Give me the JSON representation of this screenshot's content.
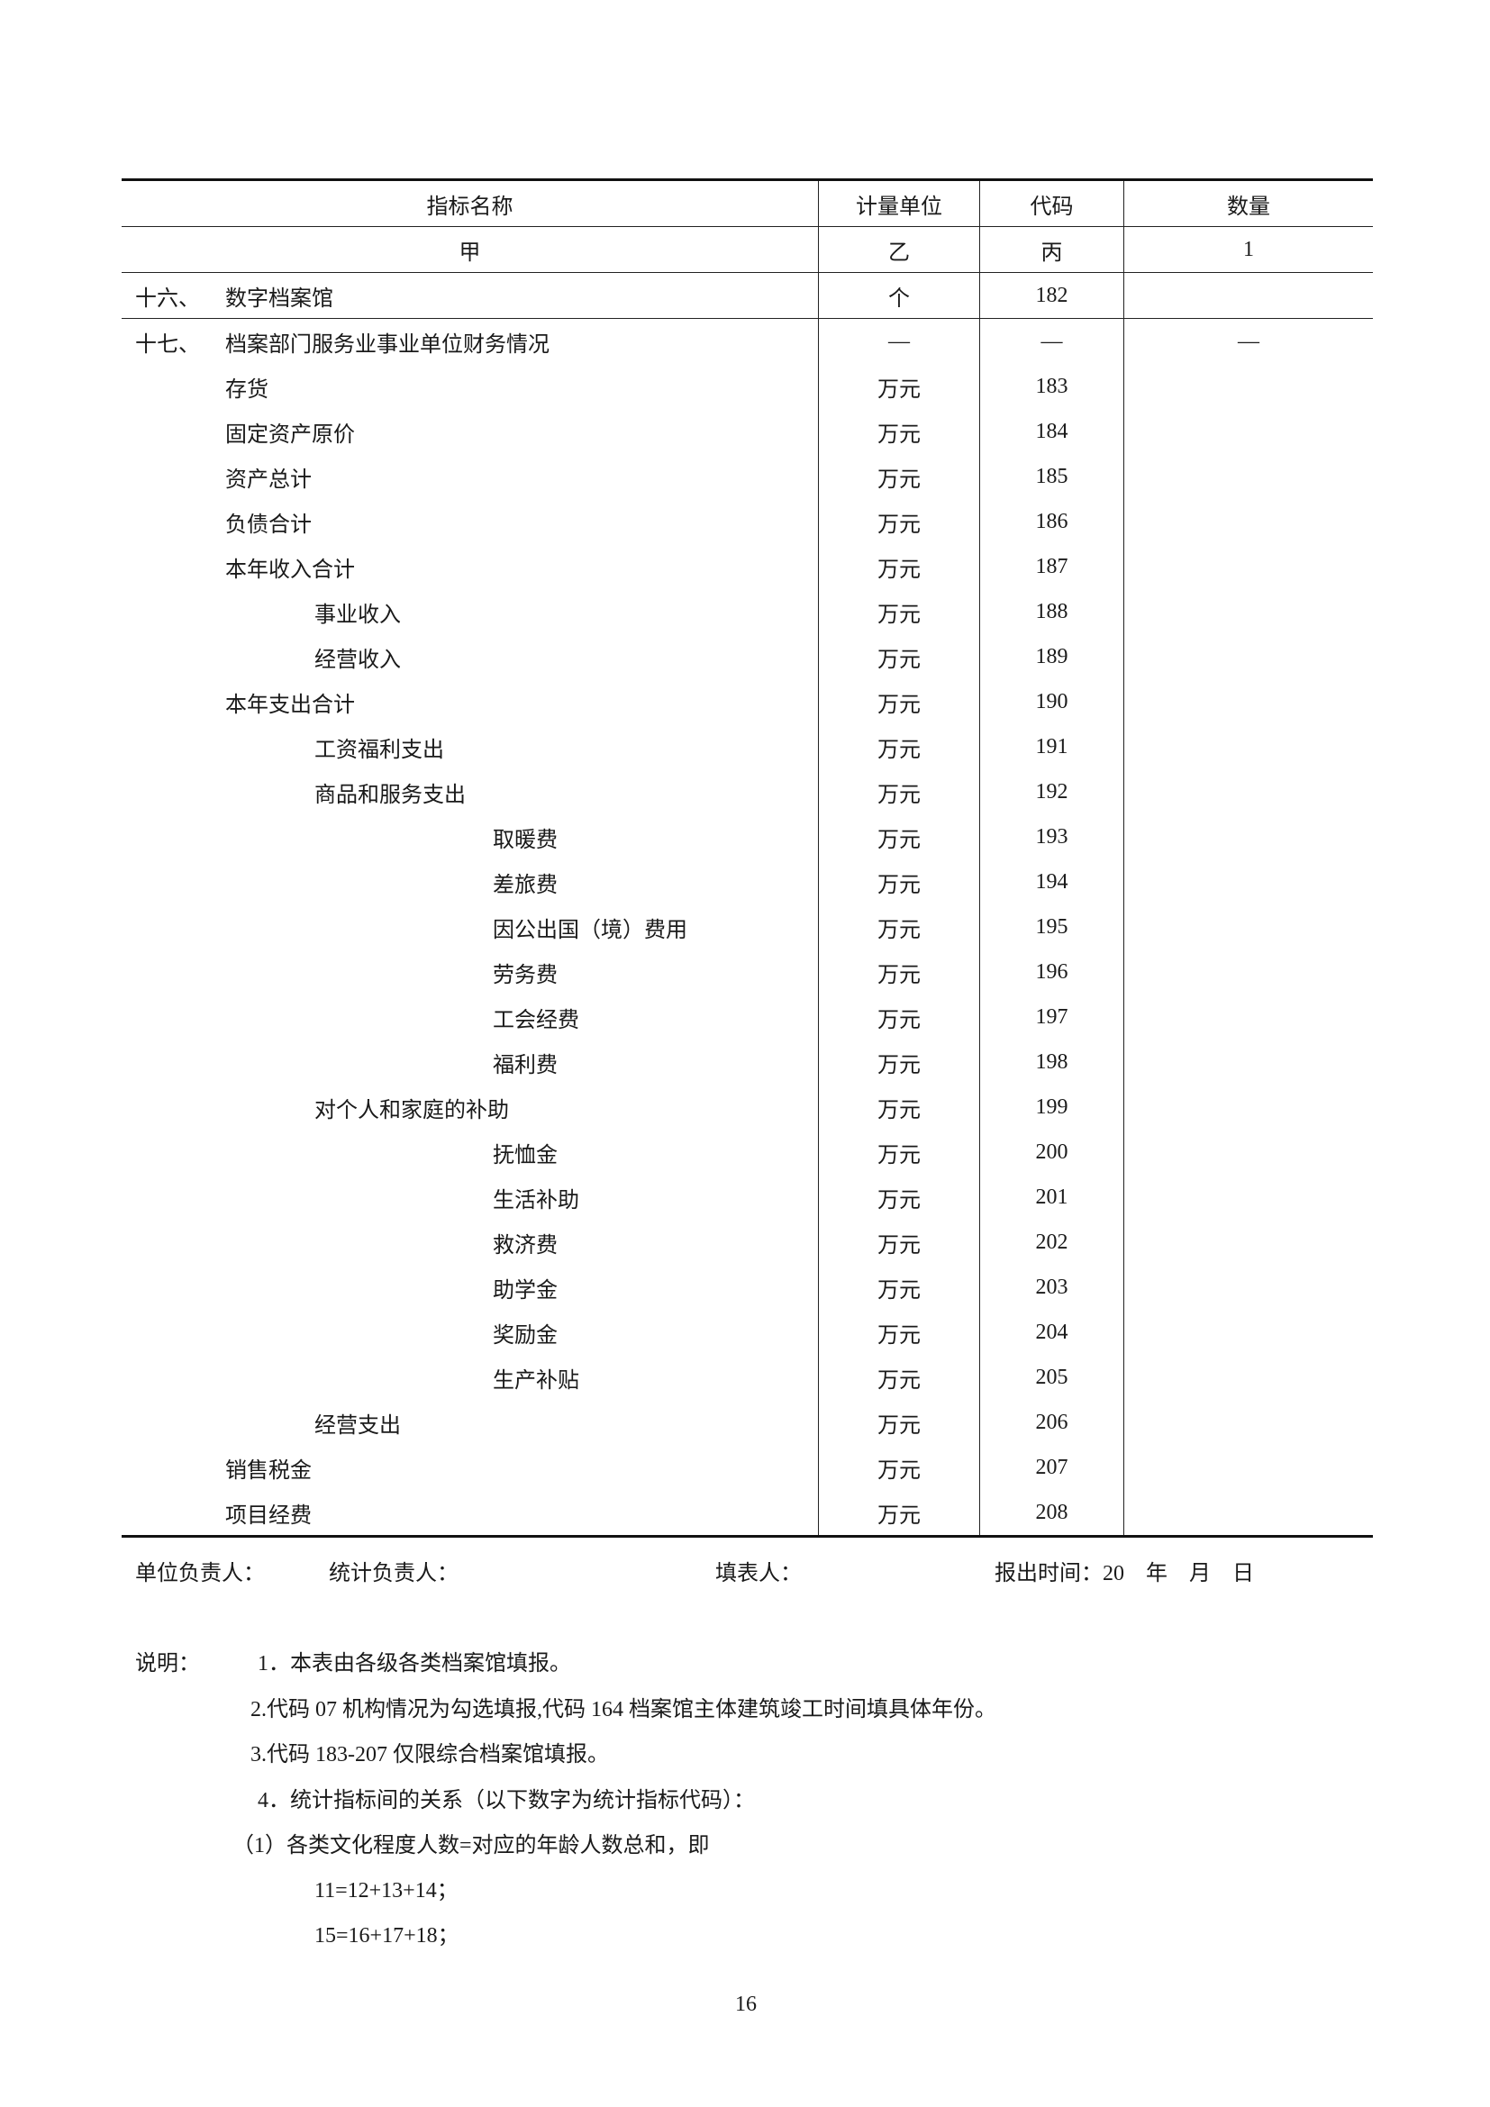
{
  "table": {
    "headers": [
      "指标名称",
      "计量单位",
      "代码",
      "数量"
    ],
    "subheaders": [
      "甲",
      "乙",
      "丙",
      "1"
    ],
    "rows": [
      {
        "num": "十六、",
        "name": "数字档案馆",
        "level": 0,
        "unit": "个",
        "code": "182",
        "qty": ""
      },
      {
        "num": "十七、",
        "name": "档案部门服务业事业单位财务情况",
        "level": 0,
        "unit": "—",
        "code": "—",
        "qty": "—"
      },
      {
        "num": "",
        "name": "存货",
        "level": 1,
        "unit": "万元",
        "code": "183",
        "qty": ""
      },
      {
        "num": "",
        "name": "固定资产原价",
        "level": 1,
        "unit": "万元",
        "code": "184",
        "qty": ""
      },
      {
        "num": "",
        "name": "资产总计",
        "level": 1,
        "unit": "万元",
        "code": "185",
        "qty": ""
      },
      {
        "num": "",
        "name": "负债合计",
        "level": 1,
        "unit": "万元",
        "code": "186",
        "qty": ""
      },
      {
        "num": "",
        "name": "本年收入合计",
        "level": 1,
        "unit": "万元",
        "code": "187",
        "qty": ""
      },
      {
        "num": "",
        "name": "事业收入",
        "level": 2,
        "unit": "万元",
        "code": "188",
        "qty": ""
      },
      {
        "num": "",
        "name": "经营收入",
        "level": 2,
        "unit": "万元",
        "code": "189",
        "qty": ""
      },
      {
        "num": "",
        "name": "本年支出合计",
        "level": 1,
        "unit": "万元",
        "code": "190",
        "qty": ""
      },
      {
        "num": "",
        "name": "工资福利支出",
        "level": 2,
        "unit": "万元",
        "code": "191",
        "qty": ""
      },
      {
        "num": "",
        "name": "商品和服务支出",
        "level": 2,
        "unit": "万元",
        "code": "192",
        "qty": ""
      },
      {
        "num": "",
        "name": "取暖费",
        "level": 3,
        "unit": "万元",
        "code": "193",
        "qty": ""
      },
      {
        "num": "",
        "name": "差旅费",
        "level": 3,
        "unit": "万元",
        "code": "194",
        "qty": ""
      },
      {
        "num": "",
        "name": "因公出国（境）费用",
        "level": 3,
        "unit": "万元",
        "code": "195",
        "qty": ""
      },
      {
        "num": "",
        "name": "劳务费",
        "level": 3,
        "unit": "万元",
        "code": "196",
        "qty": ""
      },
      {
        "num": "",
        "name": "工会经费",
        "level": 3,
        "unit": "万元",
        "code": "197",
        "qty": ""
      },
      {
        "num": "",
        "name": "福利费",
        "level": 3,
        "unit": "万元",
        "code": "198",
        "qty": ""
      },
      {
        "num": "",
        "name": "对个人和家庭的补助",
        "level": 2,
        "unit": "万元",
        "code": "199",
        "qty": ""
      },
      {
        "num": "",
        "name": "抚恤金",
        "level": 3,
        "unit": "万元",
        "code": "200",
        "qty": ""
      },
      {
        "num": "",
        "name": "生活补助",
        "level": 3,
        "unit": "万元",
        "code": "201",
        "qty": ""
      },
      {
        "num": "",
        "name": "救济费",
        "level": 3,
        "unit": "万元",
        "code": "202",
        "qty": ""
      },
      {
        "num": "",
        "name": "助学金",
        "level": 3,
        "unit": "万元",
        "code": "203",
        "qty": ""
      },
      {
        "num": "",
        "name": "奖励金",
        "level": 3,
        "unit": "万元",
        "code": "204",
        "qty": ""
      },
      {
        "num": "",
        "name": "生产补贴",
        "level": 3,
        "unit": "万元",
        "code": "205",
        "qty": ""
      },
      {
        "num": "",
        "name": "经营支出",
        "level": 2,
        "unit": "万元",
        "code": "206",
        "qty": ""
      },
      {
        "num": "",
        "name": "销售税金",
        "level": 1,
        "unit": "万元",
        "code": "207",
        "qty": ""
      },
      {
        "num": "",
        "name": "项目经费",
        "level": 1,
        "unit": "万元",
        "code": "208",
        "qty": ""
      }
    ]
  },
  "footer": {
    "unit_head": "单位负责人：",
    "stats_head": "统计负责人：",
    "filler": "填表人：",
    "report_time": "报出时间：20　年　月　日"
  },
  "notes": {
    "label": "说明：",
    "items": [
      "1．本表由各级各类档案馆填报。",
      "2.代码 07 机构情况为勾选填报,代码 164 档案馆主体建筑竣工时间填具体年份。",
      "3.代码 183-207 仅限综合档案馆填报。",
      "4．统计指标间的关系（以下数字为统计指标代码）：",
      "（1）各类文化程度人数=对应的年龄人数总和，即",
      "11=12+13+14；",
      "15=16+17+18；"
    ]
  },
  "page_number": "16"
}
